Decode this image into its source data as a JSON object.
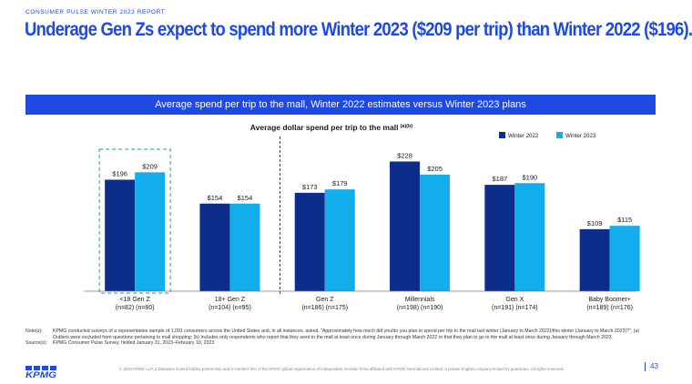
{
  "report_label": "CONSUMER PULSE WINTER 2023 REPORT",
  "headline": "Underage Gen Zs expect to spend more Winter 2023 ($209 per trip) than Winter 2022 ($196).",
  "banner": "Average spend per trip to the mall, Winter 2022 estimates versus Winter 2023 plans",
  "colors": {
    "accent": "#1e49e2",
    "winter2022": "#0c2e8a",
    "winter2023": "#12adec",
    "highlight": "#3ab9a5"
  },
  "chart_data": {
    "type": "bar",
    "title": "Average dollar spend per trip to the mall",
    "title_superscript": "(a)(b)",
    "categories": [
      "<18 Gen Z",
      "18+ Gen Z",
      "Gen Z",
      "Millennials",
      "Gen X",
      "Baby Boomer+"
    ],
    "category_samples": [
      "(n=82) (n=80)",
      "(n=104) (n=95)",
      "(n=186) (n=175)",
      "(n=198) (n=190)",
      "(n=191) (n=174)",
      "(n=189) (n=176)"
    ],
    "series": [
      {
        "name": "Winter 2022",
        "values": [
          196,
          154,
          173,
          228,
          187,
          109
        ]
      },
      {
        "name": "Winter 2023",
        "values": [
          209,
          154,
          179,
          205,
          190,
          115
        ]
      }
    ],
    "value_labels": [
      [
        "$196",
        "$154",
        "$173",
        "$228",
        "$187",
        "$109"
      ],
      [
        "$209",
        "$154",
        "$179",
        "$205",
        "$190",
        "$115"
      ]
    ],
    "ylim": [
      0,
      240
    ],
    "legend_position": "top-right",
    "highlighted_category": "<18 Gen Z",
    "grid": false
  },
  "notes": {
    "note_key": "Note(s):",
    "note_text": "KPMG conducted surveys of a representative sample of 1,091 consumers across the United States and, in all instances, asked, \"Approximately how much did you/do you plan to spend per trip to the mall last winter (January to March 2022)/this winter (January to March 2023)?\"; (a) Outliers were excluded from questions pertaining to mall shopping; (b) Includes only respondents who report that they went to the mall at least once during January through March 2022 or that they plan to go to the mall at least once during January through March 2023.",
    "source_key": "Source(s):",
    "source_text": "KPMG Consumer Pulse Survey, fielded January 31, 2023–February 10, 2023"
  },
  "footer": {
    "logo": "KPMG",
    "copyright": "© 2023 KPMG LLP, a Delaware limited liability partnership and a member firm of the KPMG global organization of independent member firms affiliated with KPMG International Limited, a private English company limited by guarantee. All rights reserved.",
    "page": "43"
  }
}
